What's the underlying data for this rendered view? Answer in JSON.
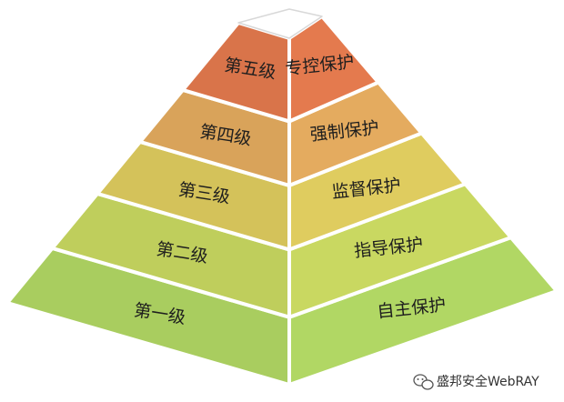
{
  "pyramid": {
    "levels": [
      {
        "level": "第一级",
        "protection": "自主保护",
        "color": "#a9cd5f"
      },
      {
        "level": "第二级",
        "protection": "指导保护",
        "color": "#bfce5c"
      },
      {
        "level": "第三级",
        "protection": "监督保护",
        "color": "#d4c25a"
      },
      {
        "level": "第四级",
        "protection": "强制保护",
        "color": "#d9a35a"
      },
      {
        "level": "第五级",
        "protection": "专控保护",
        "color": "#d9744a"
      }
    ],
    "edge_color": "#ffffff"
  },
  "watermark": {
    "text": "盛邦安全WebRAY",
    "icon": "wechat-icon"
  }
}
